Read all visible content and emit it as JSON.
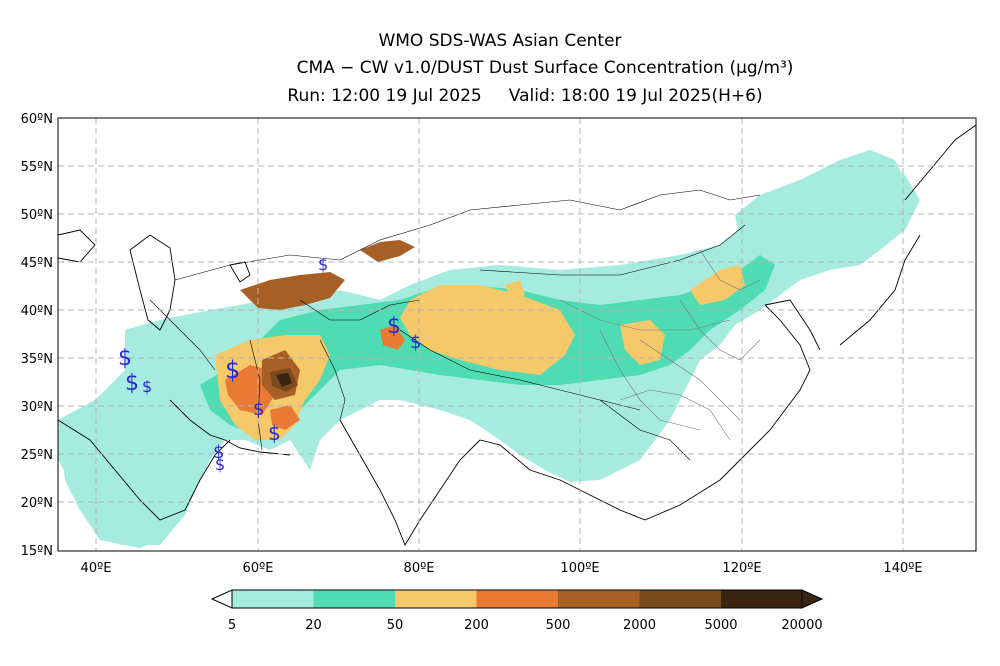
{
  "header": {
    "line1": "WMO SDS-WAS Asian Center",
    "line2": "CMA − CW v1.0/DUST Dust Surface Concentration (μg/m³)",
    "line3": "Run: 12:00 19 Jul 2025     Valid: 18:00 19 Jul 2025(H+6)"
  },
  "map": {
    "lat_labels": [
      "60ºN",
      "55ºN",
      "50ºN",
      "45ºN",
      "40ºN",
      "35ºN",
      "30ºN",
      "25ºN",
      "20ºN",
      "15ºN"
    ],
    "lon_labels": [
      "40ºE",
      "60ºE",
      "80ºE",
      "100ºE",
      "120ºE",
      "140ºE"
    ],
    "storm_marker": "$",
    "gridlines": "dashed"
  },
  "colorbar": {
    "labels": [
      "5",
      "20",
      "50",
      "200",
      "500",
      "2000",
      "5000",
      "20000"
    ],
    "colors": [
      "#a5ebe0",
      "#4fdcb2",
      "#f5c86a",
      "#e87a34",
      "#a85f25",
      "#7a4a1c",
      "#3a2412"
    ]
  }
}
